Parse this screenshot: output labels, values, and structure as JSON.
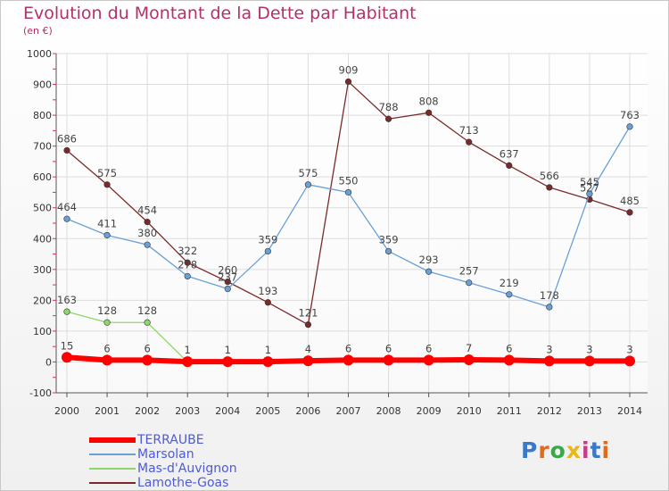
{
  "title": "Evolution du Montant de la Dette par Habitant",
  "subtitle": "(en €)",
  "logo": "Proxiti",
  "chart_data": {
    "type": "line",
    "title": "Evolution du Montant de la Dette par Habitant",
    "subtitle": "(en €)",
    "x": [
      "2000",
      "2001",
      "2002",
      "2003",
      "2004",
      "2005",
      "2006",
      "2007",
      "2008",
      "2009",
      "2010",
      "2011",
      "2012",
      "2013",
      "2014"
    ],
    "ylim": [
      -100,
      1000
    ],
    "yticks": [
      -100,
      0,
      100,
      200,
      300,
      400,
      500,
      600,
      700,
      800,
      900,
      1000
    ],
    "grid": true,
    "legend_position": "bottom-left",
    "series": [
      {
        "name": "TERRAUBE",
        "color": "#ff0000",
        "values": [
          15,
          6,
          6,
          1,
          1,
          1,
          4,
          6,
          6,
          6,
          7,
          6,
          3,
          3,
          3
        ],
        "labels": [
          "15",
          "6",
          "6",
          "1",
          "1",
          "1",
          "4",
          "6",
          "6",
          "6",
          "7",
          "6",
          "3",
          "3",
          "3"
        ]
      },
      {
        "name": "Marsolan",
        "color": "#6aa0d6",
        "values": [
          464,
          411,
          380,
          278,
          237,
          359,
          575,
          550,
          359,
          293,
          257,
          219,
          178,
          545,
          763
        ],
        "labels": [
          "464",
          "411",
          "380",
          "278",
          "237",
          "359",
          "575",
          "550",
          "359",
          "293",
          "257",
          "219",
          "178",
          "545",
          "763"
        ]
      },
      {
        "name": "Mas-d'Auvignon",
        "color": "#8fd66a",
        "values": [
          163,
          128,
          128,
          0,
          0,
          0,
          0,
          0,
          0,
          0,
          0,
          0,
          0,
          0,
          0
        ],
        "labels": [
          "163",
          "128",
          "128",
          "",
          "",
          "",
          "",
          "",
          "",
          "",
          "",
          "",
          "",
          "",
          ""
        ]
      },
      {
        "name": "Lamothe-Goas",
        "color": "#7a2a2a",
        "values": [
          686,
          575,
          454,
          322,
          260,
          193,
          121,
          909,
          788,
          808,
          713,
          637,
          566,
          527,
          485
        ],
        "labels": [
          "686",
          "575",
          "454",
          "322",
          "260",
          "193",
          "121",
          "909",
          "788",
          "808",
          "713",
          "637",
          "566",
          "527",
          "485"
        ]
      }
    ]
  }
}
